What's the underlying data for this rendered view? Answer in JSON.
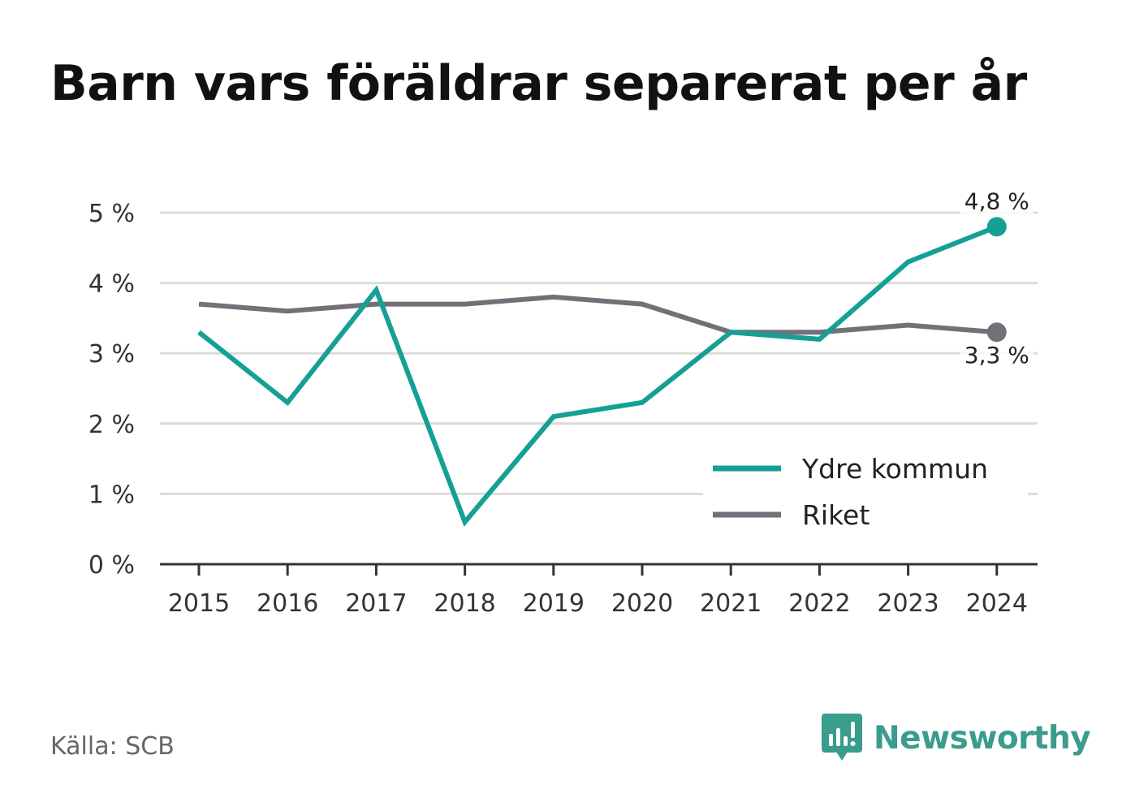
{
  "title": "Barn vars föräldrar separerat per år",
  "source": "Källa: SCB",
  "brand": {
    "name": "Newsworthy",
    "color": "#3a9c8c",
    "icon": "newsworthy-logo-icon"
  },
  "colors": {
    "ydre": "#14a095",
    "riket": "#727078",
    "grid": "#dcdcdc",
    "axis": "#333333"
  },
  "chart_data": {
    "type": "line",
    "title": "Barn vars föräldrar separerat per år",
    "x": [
      "2015",
      "2016",
      "2017",
      "2018",
      "2019",
      "2020",
      "2021",
      "2022",
      "2023",
      "2024"
    ],
    "ylim": [
      0,
      5
    ],
    "yticks": [
      0,
      1,
      2,
      3,
      4,
      5
    ],
    "ytick_labels": [
      "0 %",
      "1 %",
      "2 %",
      "3 %",
      "4 %",
      "5 %"
    ],
    "grid": true,
    "legend_position": "bottom-right",
    "series": [
      {
        "name": "Ydre kommun",
        "color": "#14a095",
        "values": [
          3.3,
          2.3,
          3.9,
          0.6,
          2.1,
          2.3,
          3.3,
          3.2,
          4.3,
          4.8
        ],
        "end_label": "4,8 %"
      },
      {
        "name": "Riket",
        "color": "#727078",
        "values": [
          3.7,
          3.6,
          3.7,
          3.7,
          3.8,
          3.7,
          3.3,
          3.3,
          3.4,
          3.3
        ],
        "end_label": "3,3 %"
      }
    ]
  }
}
